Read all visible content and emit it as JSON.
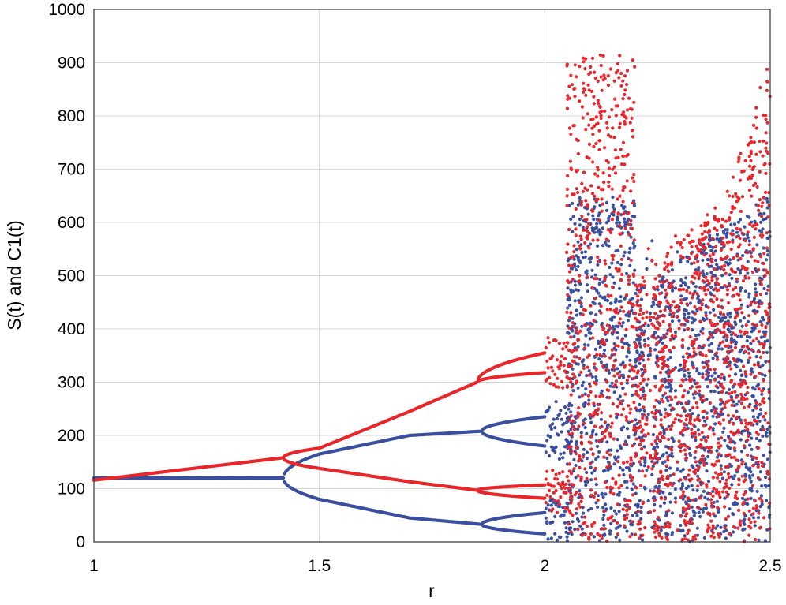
{
  "chart_data": {
    "type": "scatter",
    "xlabel": "r",
    "ylabel": "S(t) and C1(t)",
    "xlim": [
      1,
      2.5
    ],
    "ylim": [
      0,
      1000
    ],
    "x_ticks": [
      "1",
      "1.5",
      "2",
      "2.5"
    ],
    "y_ticks": [
      "0",
      "100",
      "200",
      "300",
      "400",
      "500",
      "600",
      "700",
      "800",
      "900",
      "1000"
    ],
    "grid": true,
    "legend": "none",
    "series": [
      {
        "color": "#e8262b",
        "description_points": [
          {
            "r": 1.0,
            "values": [
              116
            ]
          },
          {
            "r": 1.2,
            "values": [
              136
            ]
          },
          {
            "r": 1.42,
            "values": [
              158
            ]
          },
          {
            "r": 1.5,
            "values": [
              176,
              138
            ]
          },
          {
            "r": 1.7,
            "values": [
              245,
              113
            ]
          },
          {
            "r": 1.85,
            "values": [
              300,
              97
            ]
          },
          {
            "r": 2.0,
            "values": [
              355,
              318,
              107,
              82
            ]
          },
          {
            "r": 2.2,
            "values_range": [
              0,
              490
            ]
          },
          {
            "r": 2.4,
            "values_range": [
              0,
              650
            ]
          },
          {
            "r": 2.5,
            "values_range": [
              0,
              915
            ]
          }
        ]
      },
      {
        "color": "#3a4fa0",
        "description_points": [
          {
            "r": 1.0,
            "values": [
              120
            ]
          },
          {
            "r": 1.42,
            "values": [
              120
            ]
          },
          {
            "r": 1.5,
            "values": [
              165,
              80
            ]
          },
          {
            "r": 1.7,
            "values": [
              200,
              45
            ]
          },
          {
            "r": 1.86,
            "values": [
              208,
              33
            ]
          },
          {
            "r": 2.0,
            "values": [
              235,
              180,
              55,
              15
            ]
          },
          {
            "r": 2.2,
            "values_range": [
              0,
              470
            ]
          },
          {
            "r": 2.4,
            "values_range": [
              0,
              600
            ]
          },
          {
            "r": 2.5,
            "values_range": [
              0,
              650
            ]
          }
        ]
      }
    ]
  }
}
